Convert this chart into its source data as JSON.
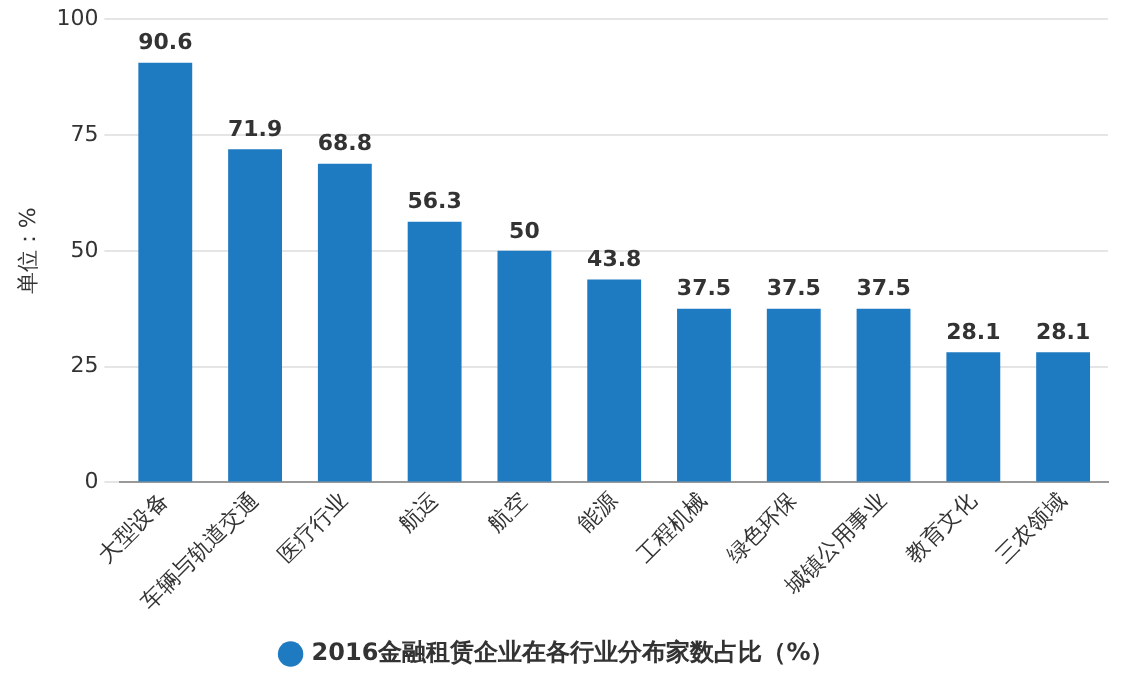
{
  "chart_data": {
    "type": "bar",
    "ylabel": "单位：%",
    "categories": [
      "大型设备",
      "车辆与轨道交通",
      "医疗行业",
      "航运",
      "航空",
      "能源",
      "工程机械",
      "绿色环保",
      "城镇公用事业",
      "教育文化",
      "三农领域"
    ],
    "series": [
      {
        "name": "2016金融租赁企业在各行业分布家数占比（%）",
        "color": "#1f7bc1",
        "values": [
          90.6,
          71.9,
          68.8,
          56.3,
          50,
          43.8,
          37.5,
          37.5,
          37.5,
          28.1,
          28.1
        ]
      }
    ],
    "ylim": [
      0,
      100
    ],
    "yticks": [
      0,
      25,
      50,
      75,
      100
    ],
    "grid": "y",
    "legend": "bottom",
    "data_labels": true
  }
}
